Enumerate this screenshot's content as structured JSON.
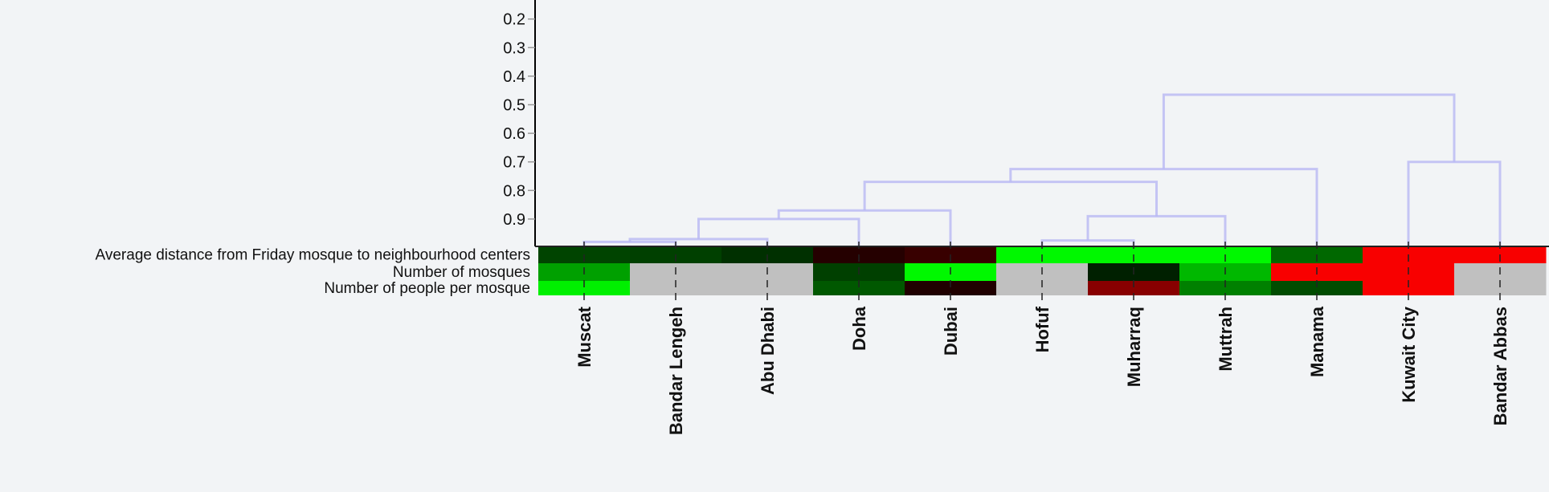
{
  "chart_data": {
    "type": "heatmap",
    "title": "",
    "columns": [
      "Muscat",
      "Bandar Lengeh",
      "Abu Dhabi",
      "Doha",
      "Dubai",
      "Hofuf",
      "Muharraq",
      "Muttrah",
      "Manama",
      "Kuwait City",
      "Bandar Abbas"
    ],
    "rows": [
      "Average distance from Friday mosque to neighbourhood centers",
      "Number of mosques",
      "Number of people per mosque"
    ],
    "cell_colors": [
      [
        "#004400",
        "#004000",
        "#003000",
        "#250000",
        "#380000",
        "#00f800",
        "#00f800",
        "#00f800",
        "#006800",
        "#f80000",
        "#f80000"
      ],
      [
        "#00a000",
        null,
        null,
        "#004000",
        "#00f800",
        null,
        "#002000",
        "#00b800",
        "#f80000",
        "#f80000",
        null
      ],
      [
        "#00f000",
        null,
        null,
        "#005800",
        "#200000",
        null,
        "#880000",
        "#008000",
        "#004c00",
        "#f80000",
        null
      ]
    ],
    "missing_color": "#c0c0c0",
    "colors": {
      "high": "#00f800",
      "low": "#f80000",
      "mid": "#000000",
      "dendrogram": "#b8b8f4"
    },
    "dendrogram": {
      "axis": {
        "ticks": [
          "0.2",
          "0.3",
          "0.4",
          "0.5",
          "0.6",
          "0.7",
          "0.8",
          "0.9"
        ],
        "range": [
          0.13,
          1.0
        ],
        "inverted": true
      },
      "merges": [
        {
          "id": "A",
          "children": [
            "Muscat",
            "Bandar Lengeh"
          ],
          "height": 0.98
        },
        {
          "id": "B",
          "children": [
            "A",
            "Abu Dhabi"
          ],
          "height": 0.97
        },
        {
          "id": "C",
          "children": [
            "B",
            "Doha"
          ],
          "height": 0.9
        },
        {
          "id": "D",
          "children": [
            "C",
            "Dubai"
          ],
          "height": 0.87
        },
        {
          "id": "E",
          "children": [
            "Hofuf",
            "Muharraq"
          ],
          "height": 0.975
        },
        {
          "id": "F",
          "children": [
            "E",
            "Muttrah"
          ],
          "height": 0.89
        },
        {
          "id": "G",
          "children": [
            "D",
            "F"
          ],
          "height": 0.77
        },
        {
          "id": "H",
          "children": [
            "G",
            "Manama"
          ],
          "height": 0.725
        },
        {
          "id": "I",
          "children": [
            "Kuwait City",
            "Bandar Abbas"
          ],
          "height": 0.7
        },
        {
          "id": "root",
          "children": [
            "H",
            "I"
          ],
          "height": 0.465
        }
      ]
    }
  }
}
